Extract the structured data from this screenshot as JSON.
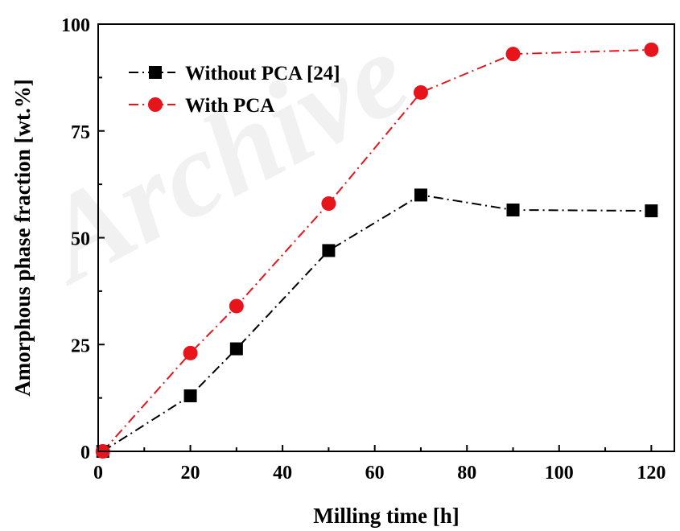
{
  "watermark": "Archive",
  "chart_data": {
    "type": "line",
    "xlabel": "Milling time [h]",
    "ylabel": "Amorphous phase fraction [wt.%]",
    "xlim": [
      0,
      125
    ],
    "ylim": [
      0,
      100
    ],
    "xticks": [
      0,
      20,
      40,
      60,
      80,
      100,
      120
    ],
    "yticks": [
      0,
      25,
      50,
      75,
      100
    ],
    "legend_position": "top-left",
    "grid": false,
    "series": [
      {
        "name": "Without PCA [24]",
        "color": "#000000",
        "marker": "square",
        "line_style": "dash-dot",
        "x": [
          1,
          20,
          30,
          50,
          70,
          90,
          120
        ],
        "y": [
          0,
          13,
          24,
          47,
          60,
          56.5,
          56.3
        ]
      },
      {
        "name": "With PCA",
        "color": "#e8141b",
        "marker": "circle",
        "line_style": "dash-dot",
        "x": [
          1,
          20,
          30,
          50,
          70,
          90,
          120
        ],
        "y": [
          0,
          23,
          34,
          58,
          84,
          93,
          94
        ]
      }
    ]
  }
}
